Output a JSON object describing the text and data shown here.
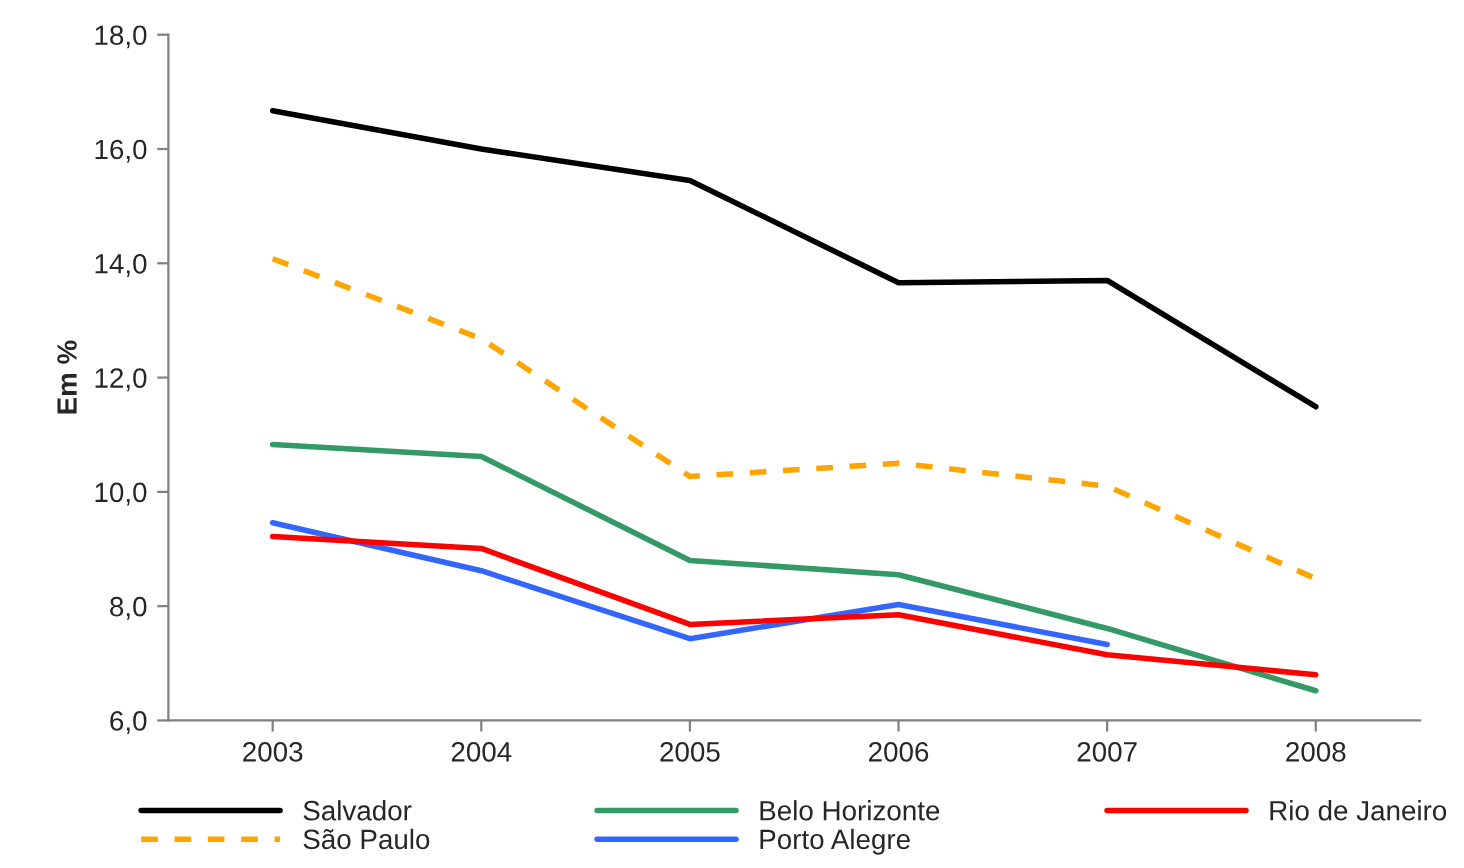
{
  "chart_data": {
    "type": "line",
    "ylabel": "Em %",
    "categories": [
      "2003",
      "2004",
      "2005",
      "2006",
      "2007",
      "2008"
    ],
    "series": [
      {
        "name": "Salvador",
        "color": "#000000",
        "line_style": "solid",
        "values": [
          16.67,
          16.0,
          15.45,
          13.66,
          13.7,
          11.49
        ]
      },
      {
        "name": "São Paulo",
        "color": "#ffa500",
        "line_style": "dashed",
        "values": [
          14.08,
          12.68,
          10.27,
          10.5,
          10.1,
          8.48
        ]
      },
      {
        "name": "Belo Horizonte",
        "color": "#339966",
        "line_style": "solid",
        "values": [
          10.83,
          10.62,
          8.8,
          8.55,
          7.61,
          6.52
        ]
      },
      {
        "name": "Porto Alegre",
        "color": "#3366ff",
        "line_style": "solid",
        "values": [
          9.46,
          8.62,
          7.43,
          8.03,
          7.33,
          null
        ]
      },
      {
        "name": "Rio de Janeiro",
        "color": "#ff0000",
        "line_style": "solid",
        "values": [
          9.22,
          9.01,
          7.68,
          7.85,
          7.15,
          6.8
        ]
      }
    ],
    "ylim": [
      6,
      18
    ],
    "yticks": [
      {
        "value": 6,
        "label": "6,0"
      },
      {
        "value": 8,
        "label": "8,0"
      },
      {
        "value": 10,
        "label": "10,0"
      },
      {
        "value": 12,
        "label": "12,0"
      },
      {
        "value": 14,
        "label": "14,0"
      },
      {
        "value": 16,
        "label": "16,0"
      },
      {
        "value": 18,
        "label": "18,0"
      }
    ],
    "grid": false,
    "legend": "bottom",
    "marker": "none"
  }
}
